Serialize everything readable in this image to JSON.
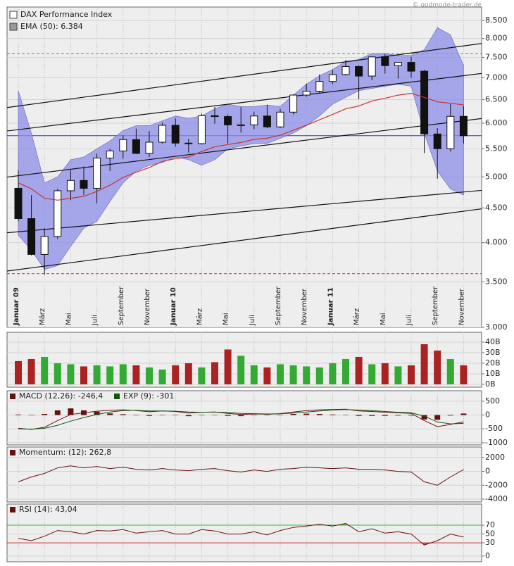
{
  "source": "© godmode-trader.de",
  "chart_data": [
    {
      "type": "candlestick",
      "categories": [
        "Januar 09",
        null,
        "März",
        null,
        "Mai",
        null,
        "Juli",
        null,
        "September",
        null,
        "November",
        null,
        "Januar 10",
        null,
        "März",
        null,
        "Mai",
        null,
        "Juli",
        null,
        "September",
        null,
        "November",
        null,
        "Januar 11",
        null,
        "März",
        null,
        "Mai",
        null,
        "Juli",
        null,
        "September",
        null,
        "November"
      ],
      "series": [
        {
          "name": "DAX Performance Index",
          "color": "#ffffff",
          "open": [
            4810,
            4340,
            3843,
            4085,
            4770,
            4940,
            4810,
            5330,
            5460,
            5675,
            5415,
            5625,
            5957,
            5608,
            5598,
            6154,
            6136,
            5965,
            5966,
            6148,
            5925,
            6229,
            6601,
            6688,
            6914,
            7077,
            7273,
            7041,
            7514,
            7294,
            7376,
            7159,
            5784,
            5502,
            6141
          ],
          "high": [
            5110,
            4700,
            4200,
            4800,
            5110,
            5180,
            5410,
            5500,
            5760,
            5890,
            5840,
            6010,
            6100,
            5690,
            6200,
            6340,
            6180,
            6340,
            6240,
            6390,
            6300,
            6620,
            6860,
            7080,
            7190,
            7440,
            7300,
            7530,
            7600,
            7330,
            7520,
            7190,
            5900,
            6400,
            6360
          ],
          "low": [
            4300,
            3830,
            3589,
            4050,
            4620,
            4700,
            4570,
            5100,
            5320,
            5400,
            5350,
            5600,
            5540,
            5430,
            5580,
            5990,
            5600,
            5810,
            5880,
            5900,
            5900,
            6180,
            6560,
            6650,
            6850,
            7050,
            6510,
            6940,
            7100,
            6980,
            7000,
            5420,
            4970,
            5450,
            5600
          ],
          "close": [
            4340,
            3843,
            4085,
            4770,
            4940,
            4810,
            5330,
            5460,
            5675,
            5415,
            5625,
            5957,
            5608,
            5598,
            6154,
            6136,
            5965,
            5966,
            6148,
            5925,
            6229,
            6601,
            6688,
            6914,
            7077,
            7273,
            7041,
            7514,
            7294,
            7376,
            7159,
            5784,
            5502,
            6141,
            5750
          ]
        },
        {
          "name": "EMA (50): 6.384",
          "color": "#c83232",
          "values": [
            4900,
            4800,
            4650,
            4620,
            4650,
            4680,
            4760,
            4860,
            4990,
            5080,
            5160,
            5270,
            5320,
            5350,
            5450,
            5540,
            5580,
            5620,
            5680,
            5700,
            5760,
            5860,
            5960,
            6070,
            6180,
            6300,
            6360,
            6470,
            6530,
            6600,
            6640,
            6550,
            6450,
            6420,
            6384
          ]
        }
      ],
      "band": {
        "color": "#8c8ce8",
        "upper": [
          6700,
          5800,
          4900,
          5000,
          5300,
          5350,
          5500,
          5650,
          5850,
          5950,
          5950,
          6050,
          6150,
          6100,
          6150,
          6300,
          6400,
          6350,
          6350,
          6380,
          6350,
          6600,
          6850,
          7050,
          7200,
          7400,
          7450,
          7600,
          7600,
          7550,
          7550,
          7700,
          8300,
          8100,
          7300
        ],
        "lower": [
          4100,
          3900,
          3650,
          3700,
          3950,
          4200,
          4300,
          4600,
          4900,
          5100,
          5200,
          5250,
          5350,
          5300,
          5200,
          5300,
          5500,
          5550,
          5600,
          5600,
          5700,
          5800,
          5950,
          6150,
          6400,
          6550,
          6700,
          6750,
          6800,
          6850,
          6800,
          5800,
          5100,
          4800,
          4700
        ]
      },
      "trendlines": [
        {
          "color": "#111111",
          "values": [
            6360,
            7800
          ]
        },
        {
          "color": "#111111",
          "values": [
            5870,
            7050
          ]
        },
        {
          "color": "#111111",
          "values": [
            5020,
            6050
          ]
        },
        {
          "color": "#111111",
          "values": [
            4150,
            4750
          ]
        },
        {
          "color": "#111111",
          "values": [
            3650,
            4450
          ]
        }
      ],
      "hlines": [
        {
          "value": 5750,
          "color": "#3333cc",
          "dashed": false
        },
        {
          "value": 7600,
          "color": "#33aa33",
          "dashed": true
        },
        {
          "value": 3600,
          "color": "#cc3333",
          "dashed": true
        }
      ],
      "log_scale": true,
      "ylim": [
        3000,
        8900
      ],
      "yticks": [
        {
          "value": 3000,
          "label": "3.000"
        },
        {
          "value": 3500,
          "label": "3.500"
        },
        {
          "value": 4000,
          "label": "4.000"
        },
        {
          "value": 4500,
          "label": "4.500"
        },
        {
          "value": 5000,
          "label": "5.000"
        },
        {
          "value": 5500,
          "label": "5.500"
        },
        {
          "value": 6000,
          "label": "6.000"
        },
        {
          "value": 6500,
          "label": "6.500"
        },
        {
          "value": 7000,
          "label": "7.000"
        },
        {
          "value": 7500,
          "label": "7.500"
        },
        {
          "value": 8000,
          "label": "8.000"
        },
        {
          "value": 8500,
          "label": "8.500"
        }
      ],
      "grid": true
    },
    {
      "type": "bar",
      "up_color": "#33aa33",
      "down_color": "#aa2222",
      "values": [
        22,
        24,
        26,
        20,
        19,
        17,
        18,
        17,
        19,
        18,
        16,
        14,
        18,
        20,
        16,
        21,
        33,
        27,
        18,
        16,
        19,
        18,
        17,
        16,
        20,
        24,
        26,
        19,
        20,
        17,
        18,
        38,
        32,
        24,
        18
      ],
      "ylim": [
        -2.7,
        49.3
      ],
      "yticks": [
        {
          "value": 0,
          "label": "0B"
        },
        {
          "value": 10,
          "label": "10B"
        },
        {
          "value": 20,
          "label": "20B"
        },
        {
          "value": 30,
          "label": "30B"
        },
        {
          "value": 40,
          "label": "40B"
        }
      ],
      "grid": true
    },
    {
      "type": "line",
      "series": [
        {
          "name": "MACD (12,26): -246,4",
          "color": "#661111",
          "values": [
            -480,
            -520,
            -440,
            -200,
            20,
            80,
            140,
            170,
            190,
            160,
            120,
            150,
            130,
            70,
            100,
            110,
            60,
            20,
            40,
            30,
            50,
            110,
            160,
            190,
            200,
            210,
            150,
            130,
            100,
            80,
            60,
            -200,
            -420,
            -340,
            -246.4
          ]
        },
        {
          "name": "EXP (9): -301",
          "color": "#115511",
          "values": [
            -500,
            -510,
            -480,
            -370,
            -220,
            -90,
            20,
            110,
            160,
            170,
            150,
            150,
            140,
            110,
            100,
            105,
            90,
            60,
            50,
            40,
            45,
            70,
            110,
            150,
            180,
            200,
            180,
            160,
            130,
            100,
            80,
            -40,
            -250,
            -320,
            -301
          ]
        }
      ],
      "histogram": {
        "color": "#661111",
        "values": [
          20,
          -10,
          40,
          170,
          240,
          170,
          120,
          60,
          30,
          -10,
          -30,
          0,
          -10,
          -40,
          0,
          5,
          -30,
          -40,
          -10,
          -10,
          5,
          40,
          50,
          40,
          20,
          10,
          -30,
          -30,
          -30,
          -20,
          -20,
          -160,
          -170,
          -20,
          55
        ]
      },
      "ylim": [
        -1080,
        880
      ],
      "yticks": [
        500,
        0,
        -500,
        -1000
      ],
      "grid": true
    },
    {
      "type": "line",
      "series": [
        {
          "name": "Momentum: (12): 262,8",
          "color": "#661111",
          "values": [
            -1500,
            -800,
            -300,
            500,
            800,
            500,
            700,
            400,
            600,
            300,
            200,
            400,
            200,
            100,
            300,
            400,
            100,
            -100,
            200,
            0,
            300,
            400,
            600,
            500,
            400,
            500,
            300,
            300,
            200,
            0,
            -100,
            -1500,
            -2000,
            -800,
            262.8
          ]
        }
      ],
      "ylim": [
        -4400,
        3500
      ],
      "yticks": [
        2000,
        0,
        -2000,
        -4000
      ],
      "grid": true
    },
    {
      "type": "line",
      "series": [
        {
          "name": "RSI (14): 43,04",
          "color": "#661111",
          "values": [
            40,
            35,
            45,
            58,
            55,
            50,
            58,
            57,
            60,
            52,
            55,
            58,
            50,
            50,
            60,
            57,
            50,
            50,
            55,
            48,
            58,
            65,
            68,
            72,
            68,
            74,
            55,
            62,
            52,
            55,
            50,
            25,
            35,
            50,
            43.04
          ]
        }
      ],
      "hlines": [
        {
          "value": 70,
          "color": "#33bb33",
          "dashed": false
        },
        {
          "value": 30,
          "color": "#cc3333",
          "dashed": false
        }
      ],
      "ylim": [
        -13,
        118
      ],
      "yticks": [
        0,
        30,
        50,
        70
      ],
      "grid": true
    }
  ]
}
